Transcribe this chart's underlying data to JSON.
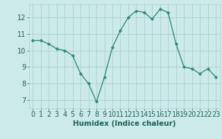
{
  "x": [
    0,
    1,
    2,
    3,
    4,
    5,
    6,
    7,
    8,
    9,
    10,
    11,
    12,
    13,
    14,
    15,
    16,
    17,
    18,
    19,
    20,
    21,
    22,
    23
  ],
  "y": [
    10.6,
    10.6,
    10.4,
    10.1,
    10.0,
    9.7,
    8.6,
    8.0,
    6.9,
    8.4,
    10.2,
    11.2,
    12.0,
    12.4,
    12.3,
    11.9,
    12.5,
    12.3,
    10.4,
    9.0,
    8.9,
    8.6,
    8.9,
    8.4
  ],
  "line_color": "#2e8b77",
  "marker": "D",
  "marker_size": 2.2,
  "line_width": 1.0,
  "background_color": "#cceae7",
  "grid_color": "#aacfcc",
  "xlabel": "Humidex (Indice chaleur)",
  "xlabel_fontsize": 7.5,
  "xlabel_bold": true,
  "tick_fontsize": 7,
  "ylim": [
    6.5,
    12.8
  ],
  "xlim": [
    -0.5,
    23.5
  ],
  "yticks": [
    7,
    8,
    9,
    10,
    11,
    12
  ],
  "xticks": [
    0,
    1,
    2,
    3,
    4,
    5,
    6,
    7,
    8,
    9,
    10,
    11,
    12,
    13,
    14,
    15,
    16,
    17,
    18,
    19,
    20,
    21,
    22,
    23
  ]
}
